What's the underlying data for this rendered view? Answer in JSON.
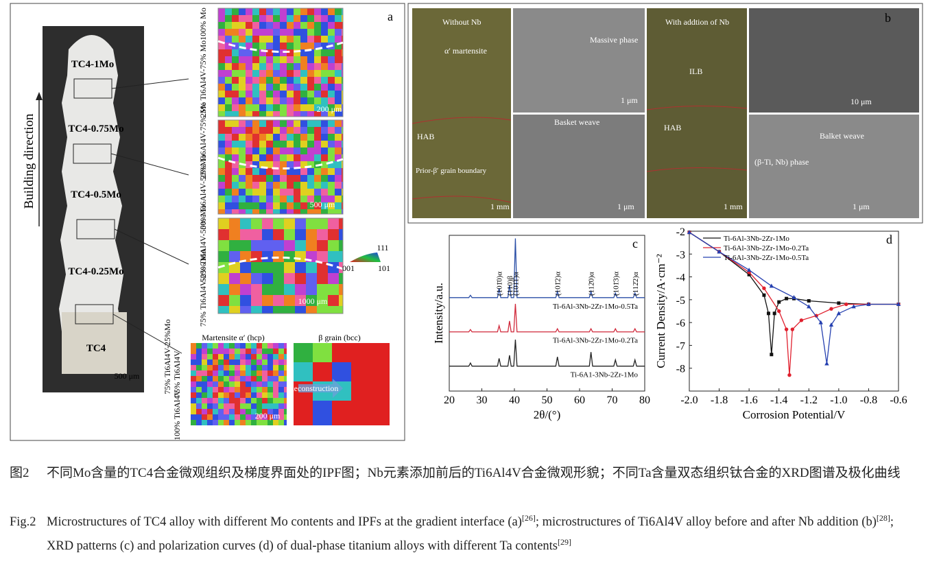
{
  "panel_a": {
    "label": "a",
    "specimen_labels": [
      "TC4-1Mo",
      "TC4-0.75Mo",
      "TC4-0.5Mo",
      "TC4-0.25Mo",
      "TC4"
    ],
    "scale_bar": "500 μm",
    "axis_label": "Building direction",
    "map_zones": [
      "100% Mo",
      "25% Ti6Al4V-75% Mo",
      "25% Ti6Al4V-75% Mo",
      "50% Ti6Al4V-50%Mo",
      "50% Ti6Al4V-50% Mo",
      "75% Ti6Al4V-25% Mo"
    ],
    "map_scale_bars": [
      "200 μm",
      "500 μm",
      "1000 μm"
    ],
    "ipf_key": [
      "111",
      "001",
      "101"
    ],
    "interface_label": "75% Ti6Al4V-25%Mo",
    "interface_titles": [
      "Martensite α′ (hcp)",
      "β grain (bcc)"
    ],
    "interface_zones": [
      "75% Ti6Al4V",
      "100% Ti6Al4V"
    ],
    "reconstruction": "Reconstruction",
    "interface_scale_bar": "200 μm"
  },
  "panel_b": {
    "label": "b",
    "texts": [
      "Without Nb",
      "α′ martensite",
      "HAB",
      "Prior-β′ grain boundary",
      "1 mm",
      "Massive phase",
      "1 μm",
      "Basket weave",
      "1 μm",
      "With addtion of Nb",
      "ILB",
      "HAB",
      "1 mm",
      "10 μm",
      "Balket weave",
      "(β-Ti, Nb) phase",
      "1 μm"
    ]
  },
  "chart_data": [
    {
      "type": "line",
      "panel_label": "c",
      "xlabel": "2θ/(°)",
      "ylabel": "Intensity/a.u.",
      "xlim": [
        20,
        80
      ],
      "xticks": [
        20,
        30,
        40,
        50,
        60,
        70,
        80
      ],
      "ylim": [
        0,
        100
      ],
      "x": [
        20,
        26,
        26.5,
        27,
        34.8,
        35.3,
        35.8,
        38,
        38.5,
        39,
        39.8,
        40.3,
        40.8,
        52.7,
        53.2,
        53.7,
        63,
        63.5,
        64,
        70.5,
        71,
        71.5,
        76.5,
        77,
        77.5,
        80
      ],
      "series": [
        {
          "name": "Ti-6Al-3Nb-2Zr-1Mo-0.5Ta",
          "color": "#2a4ea6",
          "values": [
            60,
            60,
            61.5,
            60,
            60,
            66,
            60,
            60,
            68,
            60,
            60,
            98,
            60,
            60,
            64,
            60,
            60,
            64,
            60,
            60,
            63,
            60,
            60,
            63,
            60,
            60
          ]
        },
        {
          "name": "Ti-6Al-3Nb-2Zr-1Mo-0.2Ta",
          "color": "#d0283a",
          "values": [
            38,
            38,
            39.5,
            38,
            38,
            42,
            38,
            38,
            45,
            38,
            38,
            56,
            38,
            38,
            40,
            38,
            38,
            40,
            38,
            38,
            40,
            38,
            38,
            40,
            38,
            38
          ]
        },
        {
          "name": "Ti-6A1-3Nb-2Zr-1Mo",
          "color": "#222222",
          "values": [
            16,
            16,
            18,
            16,
            16,
            21,
            16,
            16,
            23,
            16,
            16,
            33,
            16,
            16,
            22,
            16,
            16,
            25,
            16,
            16,
            20,
            16,
            16,
            20,
            16,
            16
          ]
        }
      ],
      "annotations": [
        {
          "text": "(101̄0)α",
          "x": 35.3
        },
        {
          "text": "(110)β",
          "x": 38.5
        },
        {
          "text": "(101̄1)α",
          "x": 40.3
        },
        {
          "text": "(101̄2)α",
          "x": 53.2
        },
        {
          "text": "(112̄0)α",
          "x": 63.5
        },
        {
          "text": "(101̄3)α",
          "x": 71
        },
        {
          "text": "(112̄2)α",
          "x": 77
        }
      ]
    },
    {
      "type": "line",
      "panel_label": "d",
      "xlabel": "Corrosion Potential/V",
      "ylabel": "Current Density/A·cm⁻²",
      "legend": "upper left",
      "xlim": [
        -2,
        -0.6
      ],
      "xticks": [
        {
          "value": -2,
          "label": "-2.0"
        },
        -1.8,
        -1.6,
        -1.4,
        -1.2,
        {
          "value": -1,
          "label": "-1.0"
        },
        -0.8,
        -0.6
      ],
      "ylim": [
        -9,
        -2
      ],
      "yticks": [
        -2,
        -3,
        -4,
        -5,
        -6,
        -7,
        -8
      ],
      "series": [
        {
          "name": "Ti-6Al-3Nb-2Zr-1Mo",
          "color": "#111111",
          "marker": "square",
          "x": [
            -2,
            -1.8,
            -1.6,
            -1.5,
            -1.47,
            -1.45,
            -1.43,
            -1.4,
            -1.35,
            -1.3,
            -1.2,
            -1,
            -0.8,
            -0.6
          ],
          "values": [
            -2.05,
            -2.9,
            -3.9,
            -4.8,
            -5.6,
            -7.4,
            -5.6,
            -5.1,
            -4.95,
            -4.95,
            -5.05,
            -5.15,
            -5.2,
            -5.2
          ]
        },
        {
          "name": "Ti-6Al-3Nb-2Zr-1Mo-0.2Ta",
          "color": "#e0202e",
          "marker": "circle",
          "x": [
            -2,
            -1.8,
            -1.6,
            -1.5,
            -1.4,
            -1.35,
            -1.33,
            -1.31,
            -1.25,
            -1.15,
            -1.05,
            -0.95,
            -0.8,
            -0.6
          ],
          "values": [
            -2.05,
            -2.9,
            -3.8,
            -4.5,
            -5.5,
            -6.3,
            -8.3,
            -6.3,
            -5.9,
            -5.7,
            -5.4,
            -5.2,
            -5.2,
            -5.2
          ]
        },
        {
          "name": "Ti-6Al-3Nb-2Zr-1Mo-0.5Ta",
          "color": "#2540b0",
          "marker": "triangle",
          "x": [
            -2,
            -1.8,
            -1.6,
            -1.45,
            -1.3,
            -1.2,
            -1.12,
            -1.08,
            -1.05,
            -1,
            -0.9,
            -0.8,
            -0.6
          ],
          "values": [
            -2.05,
            -2.9,
            -3.7,
            -4.4,
            -4.9,
            -5.3,
            -6,
            -7.8,
            -6.1,
            -5.6,
            -5.3,
            -5.2,
            -5.2
          ]
        }
      ]
    }
  ],
  "caption": {
    "zh_label": "图2",
    "zh": "不同Mo含量的TC4合金微观组织及梯度界面处的IPF图；Nb元素添加前后的Ti6Al4V合金微观形貌；不同Ta含量双态组织钛合金的XRD图谱及极化曲线",
    "en_label": "Fig.2",
    "en": [
      "Microstructures of TC4 alloy with different Mo contents and IPFs at the gradient interface (a)",
      "; microstructures of Ti6Al4V alloy before and after Nb addition (b)",
      "; XRD patterns (c) and polarization curves (d) of dual-phase titanium alloys with different Ta contents"
    ],
    "refs": [
      "[26]",
      "[28]",
      "[29]"
    ]
  }
}
